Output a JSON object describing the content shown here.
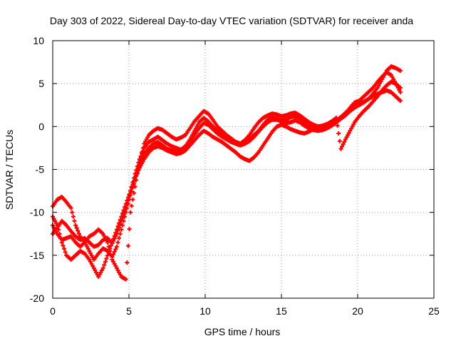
{
  "chart_data": {
    "type": "scatter",
    "title": "Day 303 of 2022, Sidereal Day-to-day VTEC variation (SDTVAR) for receiver anda",
    "xlabel": "GPS time / hours",
    "ylabel": "SDTVAR / TECUs",
    "xlim": [
      0,
      25
    ],
    "ylim": [
      -20,
      10
    ],
    "xticks": [
      0,
      5,
      10,
      15,
      20,
      25
    ],
    "yticks": [
      -20,
      -15,
      -10,
      -5,
      0,
      5,
      10
    ],
    "grid": true,
    "marker": "plus",
    "series_color": "#ff0000",
    "series": [
      {
        "x": [
          0.0,
          0.3,
          0.6,
          0.9,
          1.2,
          1.5,
          1.8,
          2.1,
          2.4,
          2.7,
          3.0,
          3.3,
          3.6,
          3.9,
          4.2,
          4.5,
          4.8,
          5.1,
          5.4,
          5.7,
          6.0,
          6.3,
          6.6,
          6.9,
          7.2,
          7.5,
          7.8,
          8.1,
          8.4,
          8.7,
          9.0,
          9.3,
          9.6,
          9.9,
          10.2,
          10.5,
          10.8,
          11.1,
          11.4,
          11.7,
          12.0,
          12.3,
          12.6,
          12.9,
          13.2,
          13.5,
          13.8,
          14.1,
          14.4,
          14.7,
          15.0,
          15.3,
          15.6,
          15.9,
          16.2,
          16.5,
          16.8,
          17.1,
          17.4,
          17.7,
          18.0,
          18.3,
          18.6,
          18.9,
          19.2,
          19.5,
          19.8,
          20.1,
          20.4,
          20.7,
          21.0,
          21.3,
          21.6,
          21.9,
          22.2,
          22.5,
          22.8
        ],
        "y": [
          -12.5,
          -11.8,
          -11.0,
          -11.5,
          -12.2,
          -12.8,
          -13.2,
          -13.0,
          -13.5,
          -14.0,
          -13.8,
          -13.2,
          -13.0,
          -13.6,
          -12.5,
          -11.0,
          -9.5,
          -7.5,
          -5.5,
          -3.8,
          -2.5,
          -1.8,
          -1.5,
          -1.2,
          -1.6,
          -2.0,
          -2.3,
          -2.5,
          -2.7,
          -2.3,
          -1.5,
          -0.5,
          0.5,
          1.0,
          0.6,
          0.0,
          -0.5,
          -0.8,
          -1.2,
          -1.5,
          -1.8,
          -2.0,
          -1.8,
          -1.5,
          -1.0,
          -0.5,
          0.2,
          0.8,
          1.0,
          0.9,
          0.7,
          0.8,
          1.1,
          1.2,
          1.0,
          0.6,
          0.2,
          -0.1,
          -0.3,
          -0.2,
          0.0,
          0.3,
          0.6,
          1.0,
          1.5,
          2.2,
          2.8,
          3.0,
          3.5,
          4.0,
          4.5,
          5.2,
          5.8,
          6.3,
          6.0,
          5.0,
          4.0
        ]
      },
      {
        "x": [
          0.0,
          0.3,
          0.6,
          0.9,
          1.2,
          1.5,
          1.8,
          2.1,
          2.4,
          2.7,
          3.0,
          3.3,
          3.6,
          3.9,
          4.2,
          4.5,
          4.8,
          5.1,
          5.4,
          5.7,
          6.0,
          6.3,
          6.6,
          6.9,
          7.2,
          7.5,
          7.8,
          8.1,
          8.4,
          8.7,
          9.0,
          9.3,
          9.6,
          9.9,
          10.2,
          10.5,
          10.8,
          11.1,
          11.4,
          11.7,
          12.0,
          12.3,
          12.6,
          12.9,
          13.2,
          13.5,
          13.8,
          14.1,
          14.4,
          14.7,
          15.0,
          15.3,
          15.6,
          15.9,
          16.2,
          16.5,
          16.8,
          17.1,
          17.4,
          17.7,
          18.0,
          18.3,
          18.6,
          18.9,
          19.2,
          19.5,
          19.8,
          20.1,
          20.4,
          20.7,
          21.0,
          21.3,
          21.6,
          21.9,
          22.2,
          22.5,
          22.8
        ],
        "y": [
          -9.3,
          -8.5,
          -8.2,
          -8.8,
          -9.5,
          -11.5,
          -12.8,
          -13.5,
          -14.5,
          -15.5,
          -14.8,
          -14.2,
          -14.5,
          -15.2,
          -14.0,
          -12.0,
          -10.0,
          -8.0,
          -6.2,
          -4.5,
          -3.2,
          -2.5,
          -2.0,
          -1.8,
          -2.2,
          -2.6,
          -2.8,
          -3.0,
          -2.9,
          -2.5,
          -1.8,
          -1.0,
          -0.2,
          0.4,
          0.2,
          -0.3,
          -0.8,
          -1.2,
          -1.5,
          -1.8,
          -2.0,
          -2.2,
          -2.0,
          -1.7,
          -1.2,
          -0.6,
          0.0,
          0.5,
          0.8,
          0.8,
          0.6,
          0.4,
          0.5,
          0.7,
          0.5,
          0.1,
          -0.2,
          -0.4,
          -0.5,
          -0.4,
          -0.2,
          0.1,
          0.5,
          0.9,
          1.3,
          1.8,
          2.2,
          2.5,
          2.8,
          3.2,
          3.8,
          4.5,
          5.5,
          6.5,
          7.0,
          6.8,
          6.5
        ]
      },
      {
        "x": [
          0.0,
          0.3,
          0.6,
          0.9,
          1.2,
          1.5,
          1.8,
          2.1,
          2.4,
          2.7,
          3.0,
          3.3,
          3.6,
          3.9,
          4.2,
          4.5,
          4.8,
          5.1,
          5.4,
          5.7,
          6.0,
          6.3,
          6.6,
          6.9,
          7.2,
          7.5,
          7.8,
          8.1,
          8.4,
          8.7,
          9.0,
          9.3,
          9.6,
          9.9,
          10.2,
          10.5,
          10.8,
          11.1,
          11.4,
          11.7,
          12.0,
          12.3,
          12.6,
          12.9,
          13.2,
          13.5,
          13.8,
          14.1,
          14.4,
          14.7,
          15.0,
          15.3,
          15.6,
          15.9,
          16.2,
          16.5,
          16.8,
          17.1,
          17.4,
          17.7,
          18.0,
          18.3,
          18.6,
          18.9,
          19.2,
          19.5,
          19.8,
          20.1,
          20.4,
          20.7,
          21.0,
          21.3,
          21.6,
          21.9,
          22.2,
          22.5,
          22.8
        ],
        "y": [
          -10.5,
          -11.5,
          -13.5,
          -15.0,
          -15.5,
          -15.0,
          -14.5,
          -14.8,
          -15.5,
          -16.5,
          -17.5,
          -16.5,
          -15.0,
          -13.5,
          -12.0,
          -10.5,
          -9.0,
          -7.5,
          -6.0,
          -4.8,
          -3.8,
          -3.0,
          -2.5,
          -2.3,
          -2.5,
          -2.8,
          -3.0,
          -3.2,
          -3.1,
          -2.8,
          -2.2,
          -1.6,
          -1.0,
          -0.5,
          -0.8,
          -1.2,
          -1.5,
          -1.8,
          -2.2,
          -2.6,
          -3.0,
          -3.5,
          -3.8,
          -4.0,
          -3.6,
          -3.0,
          -2.2,
          -1.4,
          -0.6,
          0.0,
          0.2,
          0.0,
          -0.3,
          -0.5,
          -0.7,
          -0.8,
          -0.6,
          -0.3,
          -0.1,
          0.0,
          0.2,
          0.4,
          0.7,
          1.1,
          1.6,
          2.0,
          2.4,
          2.6,
          2.9,
          3.2,
          3.5,
          3.8,
          4.0,
          4.2,
          4.0,
          3.5,
          3.0
        ]
      },
      {
        "x": [
          0.0,
          0.3,
          0.6,
          0.9,
          1.2,
          1.5,
          1.8,
          2.1,
          2.4,
          2.7,
          3.0,
          3.3,
          3.6,
          3.9,
          4.2,
          4.5,
          4.8,
          5.1,
          5.4,
          5.7,
          6.0,
          6.3,
          6.6,
          6.9,
          7.2,
          7.5,
          7.8,
          8.1,
          8.4,
          8.7,
          9.0,
          9.3,
          9.6,
          9.9,
          10.2,
          10.5,
          10.8,
          11.1,
          11.4,
          11.7,
          12.0,
          12.3,
          12.6,
          12.9,
          13.2,
          13.5,
          13.8,
          14.1,
          14.4,
          14.7,
          15.0,
          15.3,
          15.6,
          15.9,
          16.2,
          16.5,
          16.8,
          17.1,
          17.4,
          17.7,
          18.0,
          18.3,
          18.6,
          18.9,
          19.2,
          19.5,
          19.8,
          20.1,
          20.4,
          20.7,
          21.0,
          21.3,
          21.6,
          21.9,
          22.2,
          22.5,
          22.8
        ],
        "y": [
          -11.5,
          -12.5,
          -13.2,
          -13.0,
          -12.8,
          -13.5,
          -14.0,
          -13.5,
          -12.8,
          -12.5,
          -12.0,
          -12.5,
          -13.5,
          -15.5,
          -16.5,
          -17.5,
          -17.8,
          -10.0,
          -7.0,
          -4.0,
          -2.0,
          -1.0,
          -0.5,
          -0.2,
          -0.4,
          -0.8,
          -1.2,
          -1.5,
          -1.3,
          -1.0,
          -0.2,
          0.6,
          1.2,
          1.8,
          1.5,
          0.8,
          0.0,
          -0.5,
          -1.0,
          -1.4,
          -1.8,
          -2.0,
          -1.6,
          -1.0,
          -0.2,
          0.5,
          1.0,
          1.3,
          1.5,
          1.4,
          1.2,
          1.3,
          1.5,
          1.6,
          1.3,
          0.9,
          0.5,
          0.2,
          0.0,
          0.1,
          0.3,
          0.6,
          1.0,
          -2.6,
          -1.5,
          -0.5,
          0.5,
          1.2,
          1.8,
          2.3,
          2.9,
          3.5,
          4.2,
          4.8,
          5.2,
          5.0,
          4.5
        ]
      }
    ]
  }
}
